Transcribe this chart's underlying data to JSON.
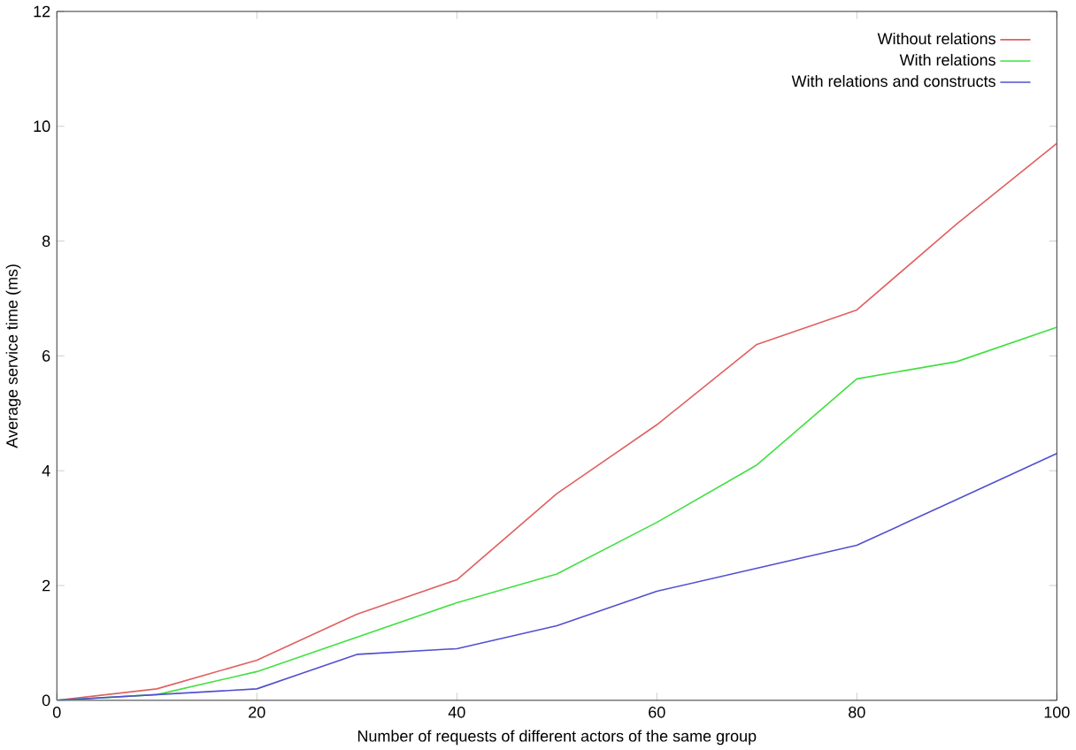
{
  "chart_data": {
    "type": "line",
    "xlabel": "Number of requests of different actors of the same group",
    "ylabel": "Average service time (ms)",
    "x": [
      0,
      10,
      20,
      30,
      40,
      50,
      60,
      70,
      80,
      90,
      100
    ],
    "series": [
      {
        "name": "Without relations",
        "color": "#e06060",
        "values": [
          0,
          0.2,
          0.7,
          1.5,
          2.1,
          3.6,
          4.8,
          6.2,
          6.8,
          8.3,
          9.7
        ]
      },
      {
        "name": "With relations",
        "color": "#40e040",
        "values": [
          0,
          0.1,
          0.5,
          1.1,
          1.7,
          2.2,
          3.1,
          4.1,
          5.6,
          5.9,
          6.5
        ]
      },
      {
        "name": "With relations and constructs",
        "color": "#5050d0",
        "values": [
          0,
          0.1,
          0.2,
          0.8,
          0.9,
          1.3,
          1.9,
          2.3,
          2.7,
          3.5,
          4.3
        ]
      }
    ],
    "xlim": [
      0,
      100
    ],
    "ylim": [
      0,
      12
    ],
    "xticks": [
      0,
      20,
      40,
      60,
      80,
      100
    ],
    "yticks": [
      0,
      2,
      4,
      6,
      8,
      10,
      12
    ],
    "legend": "top right",
    "grid": false,
    "marker": "none",
    "line_style": "solid"
  }
}
